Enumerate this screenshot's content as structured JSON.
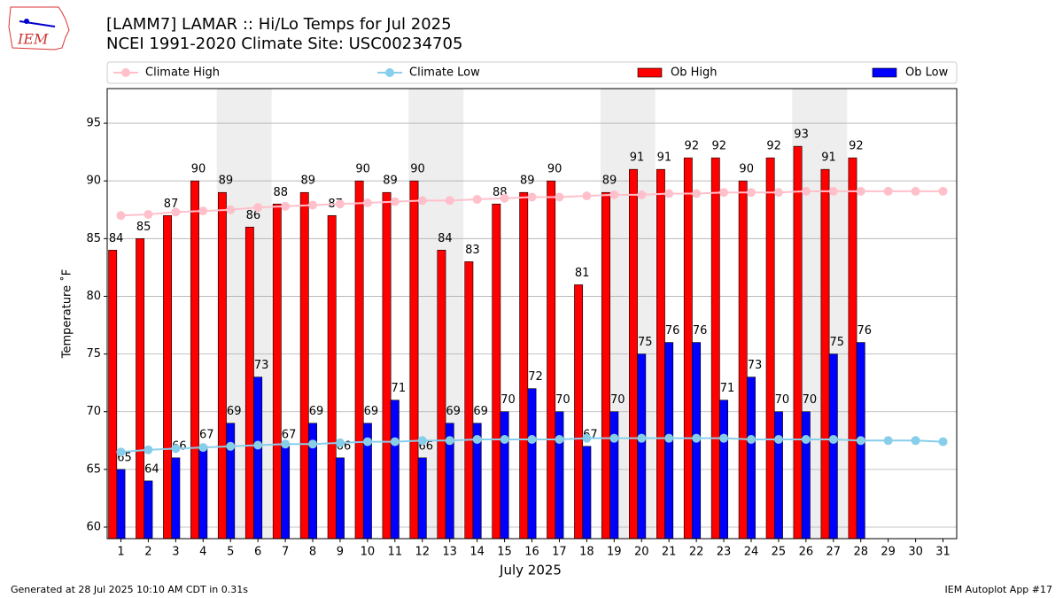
{
  "chart_data": {
    "type": "bar",
    "title": "[LAMM7] LAMAR :: Hi/Lo Temps for Jul 2025",
    "subtitle": "NCEI 1991-2020 Climate Site: USC00234705",
    "x_label": "July 2025",
    "y_label": "Temperature ˚F",
    "footer_left": "Generated at 28 Jul 2025 10:10 AM CDT in 0.31s",
    "footer_right": "IEM Autoplot App #17",
    "logo_text": "IEM",
    "x": [
      1,
      2,
      3,
      4,
      5,
      6,
      7,
      8,
      9,
      10,
      11,
      12,
      13,
      14,
      15,
      16,
      17,
      18,
      19,
      20,
      21,
      22,
      23,
      24,
      25,
      26,
      27,
      28,
      29,
      30,
      31
    ],
    "xlim": [
      0.5,
      31.5
    ],
    "xticks": [
      1,
      2,
      3,
      4,
      5,
      6,
      7,
      8,
      9,
      10,
      11,
      12,
      13,
      14,
      15,
      16,
      17,
      18,
      19,
      20,
      21,
      22,
      23,
      24,
      25,
      26,
      27,
      28,
      29,
      30,
      31
    ],
    "ylim": [
      59,
      98
    ],
    "yticks": [
      60,
      65,
      70,
      75,
      80,
      85,
      90,
      95
    ],
    "grid": true,
    "legend": "top",
    "shaded_ranges": [
      [
        4.5,
        6.5
      ],
      [
        11.5,
        13.5
      ],
      [
        18.5,
        20.5
      ],
      [
        25.5,
        27.5
      ]
    ],
    "shade_color": "#eeeeee",
    "series": [
      {
        "name": "Climate High",
        "type": "line",
        "color": "#ffc0cb",
        "values": [
          87.0,
          87.1,
          87.3,
          87.4,
          87.5,
          87.7,
          87.8,
          87.9,
          88.0,
          88.1,
          88.2,
          88.3,
          88.3,
          88.4,
          88.5,
          88.6,
          88.6,
          88.7,
          88.8,
          88.8,
          88.9,
          88.9,
          89.0,
          89.0,
          89.0,
          89.1,
          89.1,
          89.1,
          89.1,
          89.1,
          89.1
        ]
      },
      {
        "name": "Climate Low",
        "type": "line",
        "color": "#87ceeb",
        "values": [
          66.5,
          66.7,
          66.8,
          66.9,
          67.0,
          67.1,
          67.2,
          67.2,
          67.3,
          67.4,
          67.4,
          67.5,
          67.5,
          67.6,
          67.6,
          67.6,
          67.6,
          67.7,
          67.7,
          67.7,
          67.7,
          67.7,
          67.7,
          67.6,
          67.6,
          67.6,
          67.6,
          67.5,
          67.5,
          67.5,
          67.4
        ]
      },
      {
        "name": "Ob High",
        "type": "bar",
        "color": "#ff0000",
        "values": [
          84,
          85,
          87,
          90,
          89,
          86,
          88,
          89,
          87,
          90,
          89,
          90,
          84,
          83,
          88,
          89,
          90,
          81,
          89,
          91,
          91,
          92,
          92,
          90,
          92,
          93,
          91,
          92,
          null,
          null,
          null
        ]
      },
      {
        "name": "Ob Low",
        "type": "bar",
        "color": "#0000ff",
        "values": [
          65,
          64,
          66,
          67,
          69,
          73,
          67,
          69,
          66,
          69,
          71,
          66,
          69,
          69,
          70,
          72,
          70,
          67,
          70,
          75,
          76,
          76,
          71,
          73,
          70,
          70,
          75,
          76,
          null,
          null,
          null
        ]
      }
    ]
  }
}
